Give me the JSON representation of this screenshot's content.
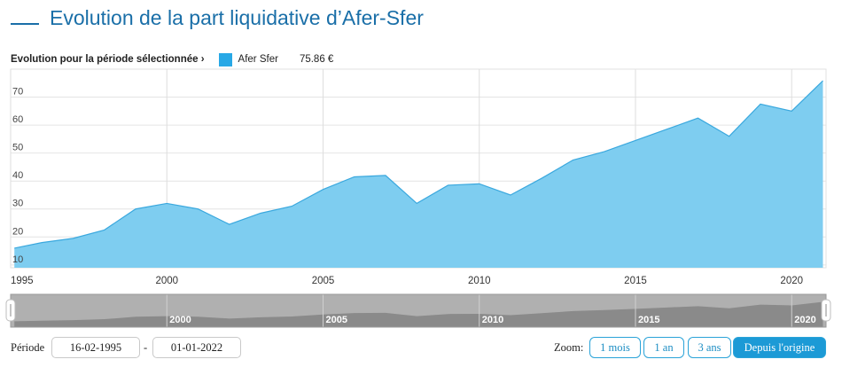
{
  "title": "Evolution de la part liquidative d’Afer-Sfer",
  "info": {
    "period_label": "Evolution pour la période sélectionnée ›",
    "legend_name": "Afer Sfer",
    "legend_value": "75.86 €"
  },
  "colors": {
    "title": "#1a6fa8",
    "series_fill": "#7ecdf0",
    "series_line": "#3aa8de",
    "legend_swatch": "#28a8e6",
    "navigator_bg": "#b0b0b0",
    "navigator_fill": "#8a8a8a",
    "zoom_active": "#1c9ad6"
  },
  "chart_data": {
    "type": "area",
    "title": "",
    "xlabel": "",
    "ylabel": "",
    "series": [
      {
        "name": "Afer Sfer",
        "x": [
          1995.12,
          1996,
          1997,
          1998,
          1999,
          2000,
          2001,
          2002,
          2003,
          2004,
          2005,
          2006,
          2007,
          2008,
          2009,
          2010,
          2011,
          2012,
          2013,
          2014,
          2015,
          2016,
          2017,
          2018,
          2019,
          2020,
          2021
        ],
        "values": [
          16,
          18,
          19.5,
          22.5,
          30,
          32,
          30,
          24.5,
          28.5,
          31,
          37,
          41.5,
          42,
          32,
          38.5,
          39,
          35,
          41,
          47.5,
          50.5,
          54.5,
          58.5,
          62.5,
          56,
          67.5,
          65,
          75.86
        ]
      }
    ],
    "x_ticks": [
      "1995",
      "2000",
      "2005",
      "2010",
      "2015",
      "2020"
    ],
    "y_ticks": [
      10,
      20,
      30,
      40,
      50,
      60,
      70
    ],
    "xlim": [
      1995,
      2021.1
    ],
    "ylim": [
      9,
      80
    ],
    "grid": true,
    "legend": "top-left",
    "navigator_ticks": [
      "2000",
      "2005",
      "2010",
      "2015",
      "2020"
    ]
  },
  "controls": {
    "period_label": "Période",
    "start_date": "16-02-1995",
    "separator": "-",
    "end_date": "01-01-2022",
    "zoom_label": "Zoom:",
    "zoom_buttons": [
      "1 mois",
      "1 an",
      "3 ans",
      "Depuis l'origine"
    ],
    "active_zoom": "Depuis l'origine"
  }
}
